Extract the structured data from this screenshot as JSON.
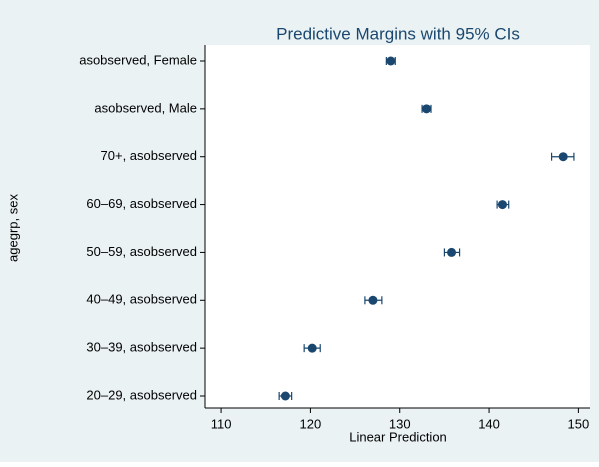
{
  "chart_data": {
    "type": "dot-ci",
    "title": "Predictive Margins with 95% CIs",
    "x_label": "Linear Prediction",
    "y_label": "agegrp, sex",
    "categories": [
      "asobserved, Female",
      "asobserved, Male",
      "70+, asobserved",
      "60–69, asobserved",
      "50–59, asobserved",
      "40–49, asobserved",
      "30–39, asobserved",
      "20–29, asobserved"
    ],
    "values": [
      129.0,
      133.0,
      148.3,
      141.5,
      135.8,
      127.0,
      120.2,
      117.2
    ],
    "ci_lower": [
      128.5,
      132.5,
      147.0,
      140.9,
      135.0,
      126.1,
      119.3,
      116.5
    ],
    "ci_upper": [
      129.5,
      133.5,
      149.5,
      142.2,
      136.7,
      128.0,
      121.1,
      117.9
    ],
    "color": "#1a476f",
    "xlim": [
      108.2,
      151.3
    ],
    "xticks": [
      110,
      120,
      130,
      140,
      150
    ],
    "grid": false
  }
}
